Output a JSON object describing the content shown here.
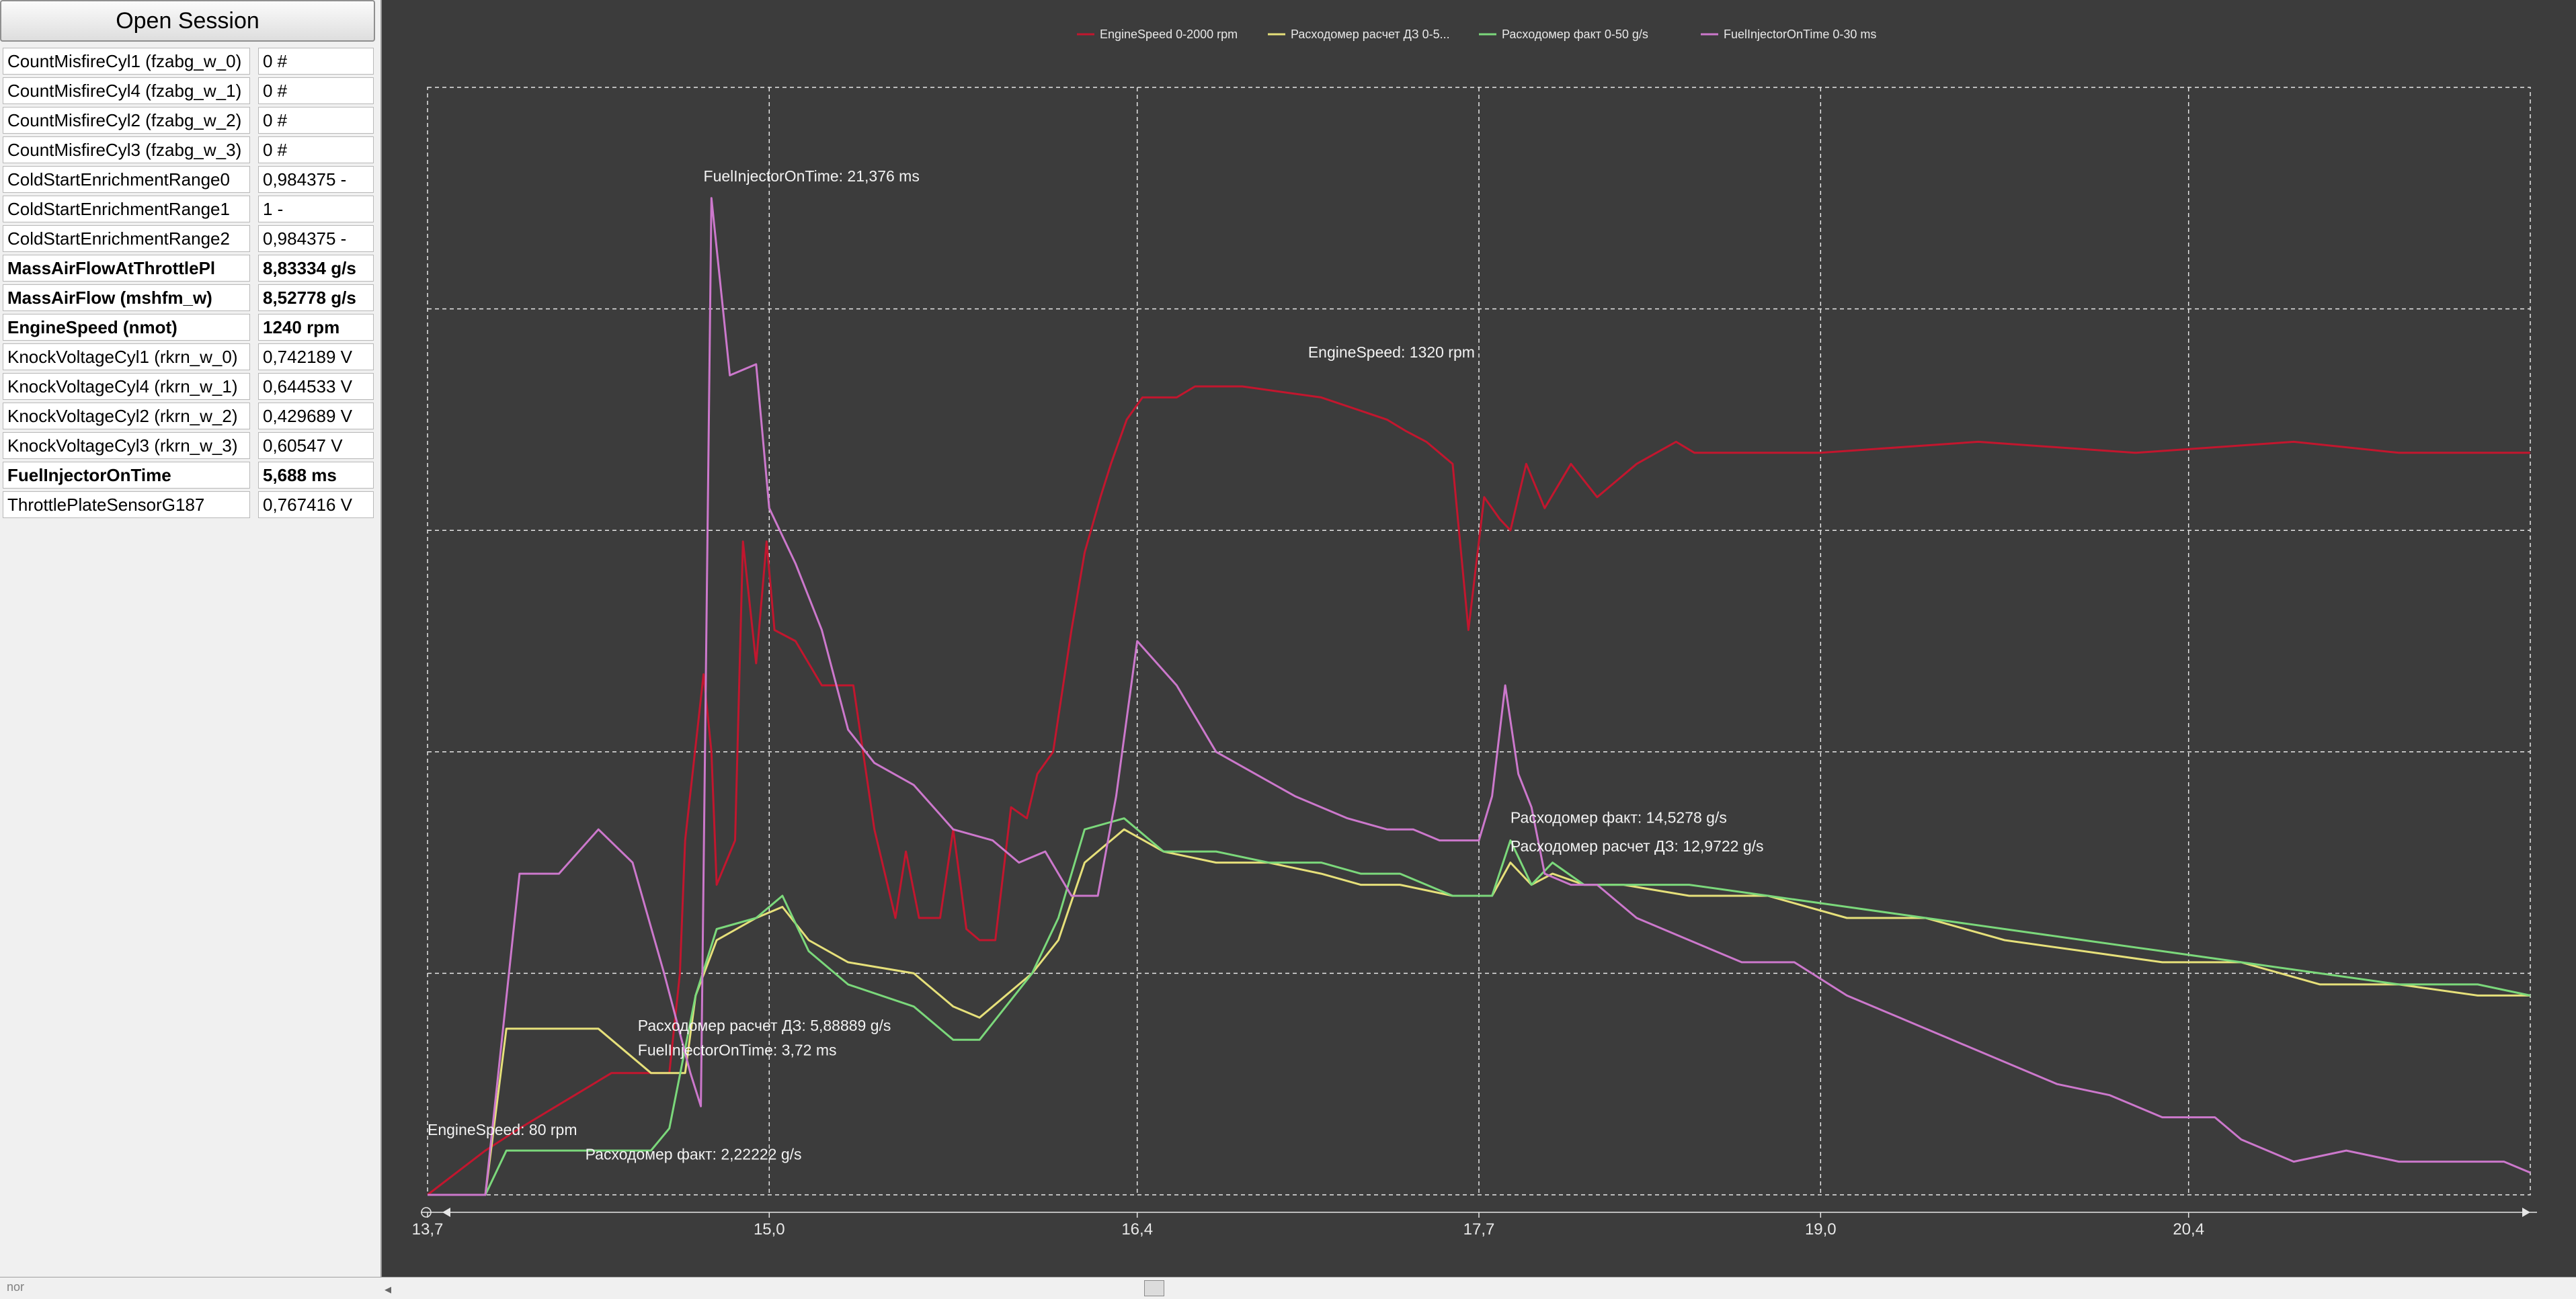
{
  "sidebar": {
    "open_session_label": "Open Session",
    "params": [
      {
        "name": "CountMisfireCyl1 (fzabg_w_0)",
        "value": "0 #",
        "bold": false
      },
      {
        "name": "CountMisfireCyl4 (fzabg_w_1)",
        "value": "0 #",
        "bold": false
      },
      {
        "name": "CountMisfireCyl2 (fzabg_w_2)",
        "value": "0 #",
        "bold": false
      },
      {
        "name": "CountMisfireCyl3 (fzabg_w_3)",
        "value": "0 #",
        "bold": false
      },
      {
        "name": "ColdStartEnrichmentRange0",
        "value": "0,984375 -",
        "bold": false
      },
      {
        "name": "ColdStartEnrichmentRange1",
        "value": "1 -",
        "bold": false
      },
      {
        "name": "ColdStartEnrichmentRange2",
        "value": "0,984375 -",
        "bold": false
      },
      {
        "name": "MassAirFlowAtThrottlePl",
        "value": "8,83334 g/s",
        "bold": true
      },
      {
        "name": "MassAirFlow (mshfm_w)",
        "value": "8,52778 g/s",
        "bold": true
      },
      {
        "name": "EngineSpeed (nmot)",
        "value": "1240 rpm",
        "bold": true
      },
      {
        "name": "KnockVoltageCyl1 (rkrn_w_0)",
        "value": "0,742189 V",
        "bold": false
      },
      {
        "name": "KnockVoltageCyl4 (rkrn_w_1)",
        "value": "0,644533 V",
        "bold": false
      },
      {
        "name": "KnockVoltageCyl2 (rkrn_w_2)",
        "value": "0,429689 V",
        "bold": false
      },
      {
        "name": "KnockVoltageCyl3 (rkrn_w_3)",
        "value": "0,60547 V",
        "bold": false
      },
      {
        "name": "FuelInjectorOnTime",
        "value": "5,688 ms",
        "bold": true
      },
      {
        "name": "ThrottlePlateSensorG187",
        "value": "0,767416 V",
        "bold": false
      }
    ]
  },
  "status_bar": {
    "text": "nor"
  },
  "chart_data": {
    "type": "line",
    "colors": {
      "background": "#3c3c3c",
      "grid": "#e6e6e6",
      "text": "#e8e8e8"
    },
    "grid": true,
    "legend_position": "top-center",
    "x_ticks": [
      "13,7",
      "15,0",
      "16,4",
      "17,7",
      "19,0",
      "20,4"
    ],
    "x_tick_values": [
      13.7,
      15.0,
      16.4,
      17.7,
      19.0,
      20.4
    ],
    "xlim": [
      13.7,
      21.7
    ],
    "ylim": [
      0,
      100
    ],
    "series": [
      {
        "name": "EngineSpeed 0-2000 rpm",
        "color": "#c2162e",
        "x": [
          13.7,
          13.92,
          14.05,
          14.4,
          14.62,
          14.66,
          14.68,
          14.75,
          14.78,
          14.8,
          14.87,
          14.9,
          14.95,
          14.99,
          15.02,
          15.1,
          15.2,
          15.32,
          15.4,
          15.48,
          15.52,
          15.57,
          15.65,
          15.7,
          15.75,
          15.8,
          15.86,
          15.92,
          15.98,
          16.02,
          16.08,
          16.15,
          16.2,
          16.26,
          16.3,
          16.36,
          16.42,
          16.55,
          16.62,
          16.78,
          16.8,
          17.1,
          17.35,
          17.42,
          17.5,
          17.6,
          17.66,
          17.72,
          17.78,
          17.82,
          17.88,
          17.95,
          18.05,
          18.15,
          18.3,
          18.45,
          18.52,
          19.0,
          19.6,
          20.2,
          20.8,
          21.2,
          21.7
        ],
        "y": [
          0,
          4,
          6,
          11,
          11,
          20,
          32,
          47,
          40,
          28,
          32,
          59,
          48,
          59,
          51,
          50,
          46,
          46,
          33,
          25,
          31,
          25,
          25,
          33,
          24,
          23,
          23,
          35,
          34,
          38,
          40,
          51,
          58,
          63,
          66,
          70,
          72,
          72,
          73,
          73,
          73,
          72,
          70,
          69,
          68,
          66,
          51,
          63,
          61,
          60,
          66,
          62,
          66,
          63,
          66,
          68,
          67,
          67,
          68,
          67,
          68,
          67,
          67
        ]
      },
      {
        "name": "Расходомер  расчет  ДЗ  0-5...",
        "color": "#e6e07a",
        "x": [
          13.7,
          13.92,
          14.0,
          14.35,
          14.55,
          14.68,
          14.72,
          14.8,
          14.95,
          15.05,
          15.15,
          15.3,
          15.55,
          15.7,
          15.8,
          16.0,
          16.1,
          16.2,
          16.35,
          16.5,
          16.7,
          16.9,
          17.1,
          17.25,
          17.4,
          17.6,
          17.7,
          17.75,
          17.82,
          17.9,
          17.98,
          18.1,
          18.25,
          18.5,
          18.8,
          19.1,
          19.4,
          19.7,
          20.0,
          20.3,
          20.6,
          20.9,
          21.2,
          21.5,
          21.7
        ],
        "y": [
          0,
          0,
          15,
          15,
          11,
          11,
          18,
          23,
          25,
          26,
          23,
          21,
          20,
          17,
          16,
          20,
          23,
          30,
          33,
          31,
          30,
          30,
          29,
          28,
          28,
          27,
          27,
          27,
          30,
          28,
          29,
          28,
          28,
          27,
          27,
          25,
          25,
          23,
          22,
          21,
          21,
          19,
          19,
          18,
          18
        ]
      },
      {
        "name": "Расходомер факт 0-50 g/s",
        "color": "#7bd87b",
        "x": [
          13.7,
          13.92,
          14.0,
          14.35,
          14.55,
          14.62,
          14.72,
          14.8,
          14.95,
          15.05,
          15.15,
          15.3,
          15.55,
          15.7,
          15.8,
          16.0,
          16.1,
          16.2,
          16.35,
          16.5,
          16.7,
          16.9,
          17.1,
          17.25,
          17.4,
          17.6,
          17.7,
          17.75,
          17.82,
          17.9,
          17.98,
          18.1,
          18.25,
          18.5,
          18.8,
          19.1,
          19.4,
          19.7,
          20.0,
          20.3,
          20.6,
          20.9,
          21.2,
          21.5,
          21.7
        ],
        "y": [
          0,
          0,
          4,
          4,
          4,
          6,
          18,
          24,
          25,
          27,
          22,
          19,
          17,
          14,
          14,
          20,
          25,
          33,
          34,
          31,
          31,
          30,
          30,
          29,
          29,
          27,
          27,
          27,
          32,
          28,
          30,
          28,
          28,
          28,
          27,
          26,
          25,
          24,
          23,
          22,
          21,
          20,
          19,
          19,
          18
        ]
      },
      {
        "name": "FuelInjectorOnTime 0-30 ms",
        "color": "#cc78cc",
        "x": [
          13.7,
          13.92,
          14.05,
          14.2,
          14.35,
          14.48,
          14.6,
          14.7,
          14.74,
          14.78,
          14.85,
          14.95,
          15.0,
          15.1,
          15.2,
          15.3,
          15.4,
          15.55,
          15.7,
          15.85,
          15.95,
          16.05,
          16.15,
          16.25,
          16.32,
          16.4,
          16.55,
          16.7,
          16.85,
          17.0,
          17.2,
          17.35,
          17.45,
          17.55,
          17.65,
          17.7,
          17.75,
          17.8,
          17.85,
          17.9,
          17.95,
          18.05,
          18.15,
          18.3,
          18.5,
          18.7,
          18.9,
          19.1,
          19.3,
          19.5,
          19.7,
          19.9,
          20.1,
          20.3,
          20.5,
          20.6,
          20.8,
          21.0,
          21.2,
          21.4,
          21.6,
          21.7
        ],
        "y": [
          0,
          0,
          29,
          29,
          33,
          30,
          20,
          11,
          8,
          90,
          74,
          75,
          62,
          57,
          51,
          42,
          39,
          37,
          33,
          32,
          30,
          31,
          27,
          27,
          36,
          50,
          46,
          40,
          38,
          36,
          34,
          33,
          33,
          32,
          32,
          32,
          36,
          46,
          38,
          35,
          29,
          28,
          28,
          25,
          23,
          21,
          21,
          18,
          16,
          14,
          12,
          10,
          9,
          7,
          7,
          5,
          3,
          4,
          3,
          3,
          3,
          2
        ]
      }
    ],
    "annotations": [
      {
        "text": "FuelInjectorOnTime: 21,376 ms",
        "x": 14.75,
        "y": 91.5
      },
      {
        "text": "EngineSpeed: 1320 rpm",
        "x": 17.05,
        "y": 75.6
      },
      {
        "text": "Расходомер факт: 14,5278 g/s",
        "x": 17.82,
        "y": 33.6
      },
      {
        "text": "Расходомер расчет ДЗ: 12,9722 g/s",
        "x": 17.82,
        "y": 31.0
      },
      {
        "text": "Расходомер расчет ДЗ: 5,88889 g/s",
        "x": 14.5,
        "y": 14.8
      },
      {
        "text": "FuelInjectorOnTime: 3,72 ms",
        "x": 14.5,
        "y": 12.6
      },
      {
        "text": "EngineSpeed: 80 rpm",
        "x": 13.7,
        "y": 5.4
      },
      {
        "text": "Расходомер факт: 2,22222 g/s",
        "x": 14.3,
        "y": 3.2
      }
    ]
  }
}
